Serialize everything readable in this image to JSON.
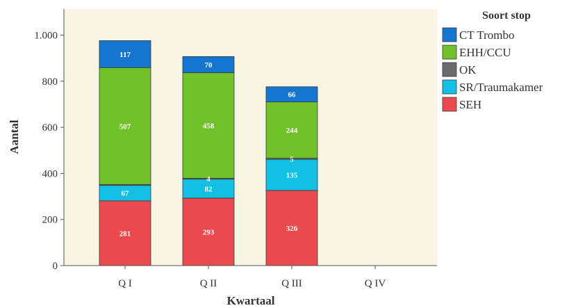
{
  "chart_data": {
    "type": "bar",
    "stacked": true,
    "categories": [
      "Q I",
      "Q II",
      "Q III",
      "Q IV"
    ],
    "series": [
      {
        "name": "SEH",
        "color": "#ea4a4d",
        "values": [
          281,
          293,
          326,
          null
        ]
      },
      {
        "name": "SR/Traumakamer",
        "color": "#13bfe3",
        "values": [
          67,
          82,
          135,
          null
        ]
      },
      {
        "name": "OK",
        "color": "#6b6b6b",
        "values": [
          4,
          4,
          5,
          null
        ]
      },
      {
        "name": "EHH/CCU",
        "color": "#72c12a",
        "values": [
          507,
          458,
          244,
          null
        ]
      },
      {
        "name": "CT Trombo",
        "color": "#1476cf",
        "values": [
          117,
          70,
          66,
          null
        ]
      }
    ],
    "data_labels": [
      [
        "281",
        "67",
        "",
        "507",
        "117"
      ],
      [
        "293",
        "82",
        "4",
        "458",
        "70"
      ],
      [
        "326",
        "135",
        "5",
        "244",
        "66"
      ],
      [
        "",
        "",
        "",
        "",
        ""
      ]
    ],
    "xlabel": "Kwartaal",
    "ylabel": "Aantal",
    "ylim": [
      0,
      1100
    ],
    "yticks": [
      0,
      200,
      400,
      600,
      800,
      1000
    ],
    "ytick_labels": [
      "0",
      "200",
      "400",
      "600",
      "800",
      "1.000"
    ],
    "legend": {
      "title": "Soort stop",
      "position": "right",
      "order": [
        "CT Trombo",
        "EHH/CCU",
        "OK",
        "SR/Traumakamer",
        "SEH"
      ]
    },
    "plot_background": "#f8f5e4",
    "grid": false
  }
}
